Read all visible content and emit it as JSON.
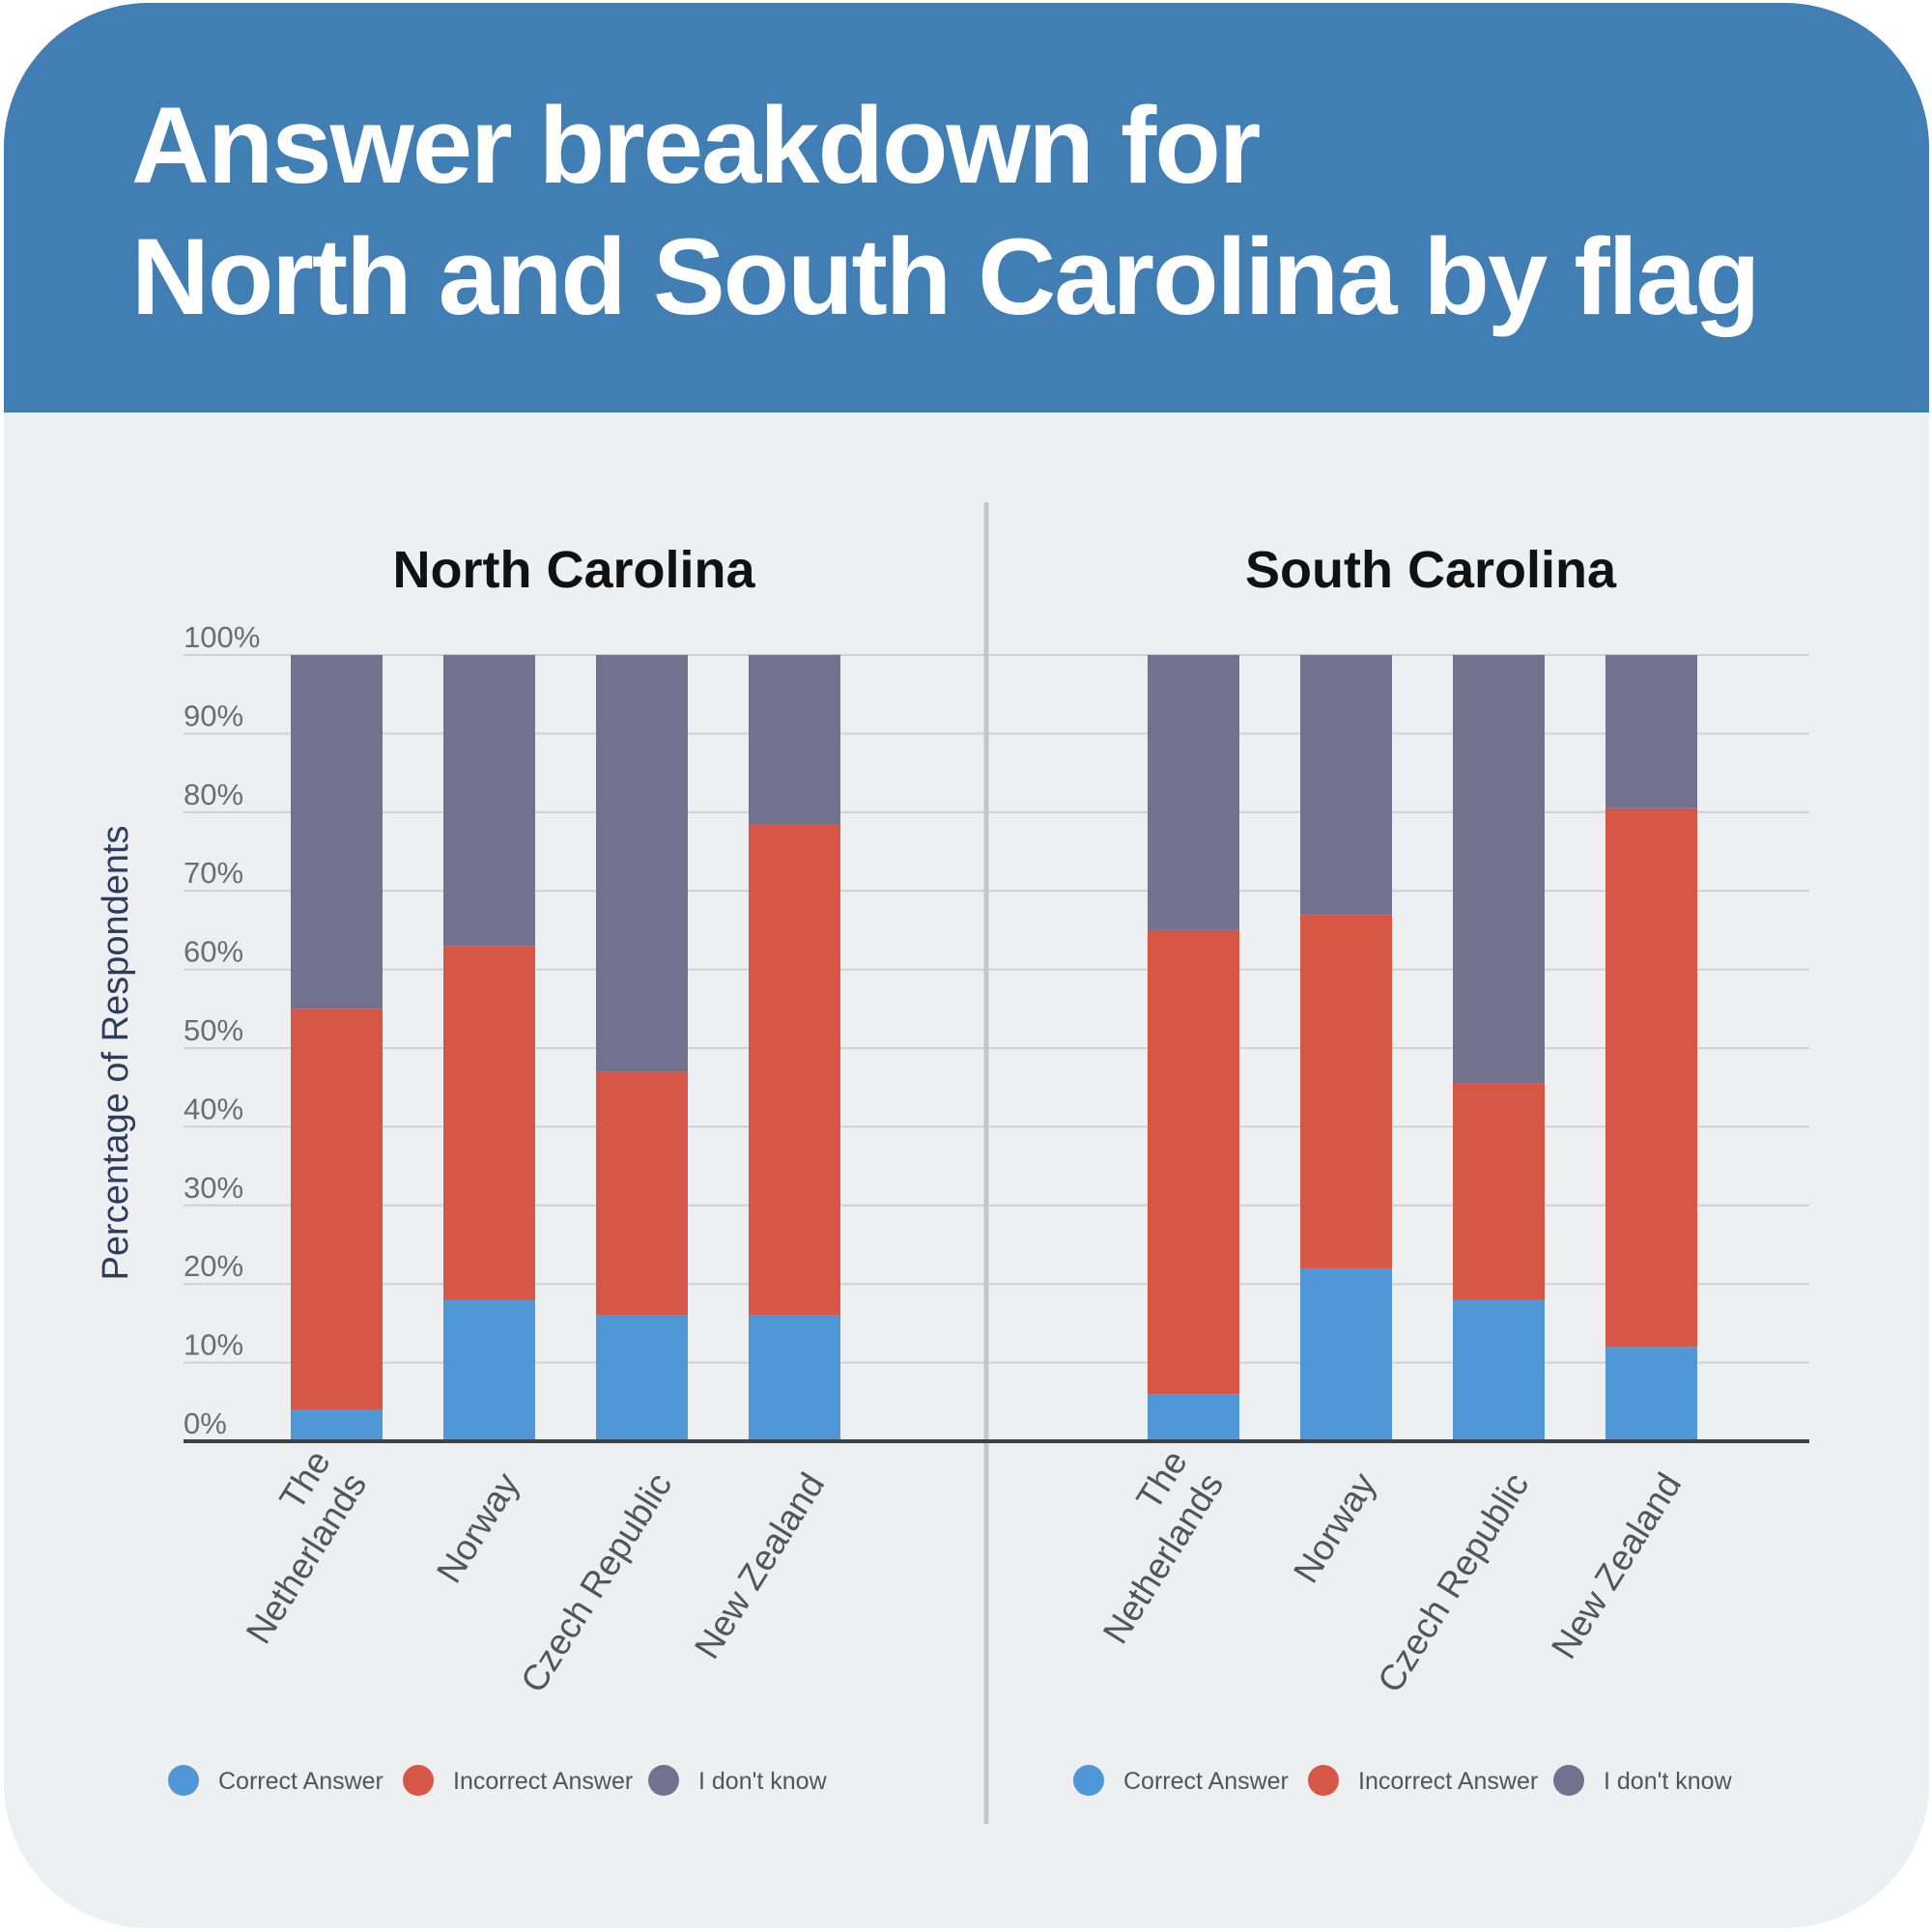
{
  "title_lines": [
    "Answer breakdown for",
    "North and South Carolina by flag"
  ],
  "colors": {
    "correct": "#4f97d6",
    "incorrect": "#d65746",
    "dont_know": "#73728e",
    "header": "#417eb3"
  },
  "chart_data": [
    {
      "type": "bar",
      "stacked": true,
      "title": "North Carolina",
      "ylabel": "Percentage of Respondents",
      "xlabel": "",
      "ylim": [
        0,
        100
      ],
      "yticks": [
        "0%",
        "10%",
        "20%",
        "30%",
        "40%",
        "50%",
        "60%",
        "70%",
        "80%",
        "90%",
        "100%"
      ],
      "categories": [
        [
          "The",
          "Netherlands"
        ],
        [
          "Norway"
        ],
        [
          "Czech Republic"
        ],
        [
          "New Zealand"
        ]
      ],
      "series": [
        {
          "name": "Correct Answer",
          "values": [
            4,
            18,
            16,
            16
          ]
        },
        {
          "name": "Incorrect Answer",
          "values": [
            51,
            45,
            31,
            62.5
          ]
        },
        {
          "name": "I don't know",
          "values": [
            45,
            37,
            53,
            21.5
          ]
        }
      ],
      "grid": true,
      "legend": "bottom"
    },
    {
      "type": "bar",
      "stacked": true,
      "title": "South Carolina",
      "ylabel": "",
      "xlabel": "",
      "ylim": [
        0,
        100
      ],
      "categories": [
        [
          "The",
          "Netherlands"
        ],
        [
          "Norway"
        ],
        [
          "Czech Republic"
        ],
        [
          "New Zealand"
        ]
      ],
      "series": [
        {
          "name": "Correct Answer",
          "values": [
            6,
            22,
            18,
            12
          ]
        },
        {
          "name": "Incorrect Answer",
          "values": [
            59,
            45,
            27.5,
            68.5
          ]
        },
        {
          "name": "I don't know",
          "values": [
            35,
            33,
            54.5,
            19.5
          ]
        }
      ],
      "grid": true,
      "legend": "bottom"
    }
  ]
}
